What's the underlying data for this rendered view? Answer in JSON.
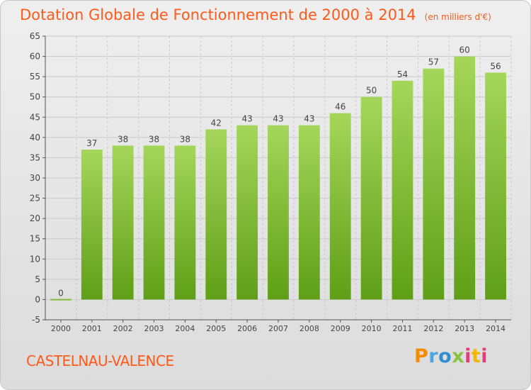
{
  "header": {
    "title": "Dotation Globale de Fonctionnement de 2000 à 2014",
    "unit": "(en milliers d'€)"
  },
  "footer": {
    "commune": "CASTELNAU-VALENCE",
    "logo_text": "Proxiti",
    "logo_colors": [
      "#f28c00",
      "#4aa6e0",
      "#2f8fd0",
      "#8ac43f",
      "#e23c7c",
      "#f2b600",
      "#e23c7c"
    ]
  },
  "chart_data": {
    "type": "bar",
    "title": "Dotation Globale de Fonctionnement de 2000 à 2014",
    "xlabel": "",
    "ylabel": "",
    "categories": [
      "2000",
      "2001",
      "2002",
      "2003",
      "2004",
      "2005",
      "2006",
      "2007",
      "2008",
      "2009",
      "2010",
      "2011",
      "2012",
      "2013",
      "2014"
    ],
    "values": [
      0,
      37,
      38,
      38,
      38,
      42,
      43,
      43,
      43,
      46,
      50,
      54,
      57,
      60,
      56
    ],
    "ylim": [
      -5,
      65
    ],
    "yticks": [
      -5,
      0,
      5,
      10,
      15,
      20,
      25,
      30,
      35,
      40,
      45,
      50,
      55,
      60,
      65
    ],
    "grid": true,
    "colors": {
      "bar_top": "#a4d65a",
      "bar_bottom": "#5f9f17",
      "grid": "#c9c9c9",
      "axis": "#555555",
      "label": "#444444"
    }
  }
}
